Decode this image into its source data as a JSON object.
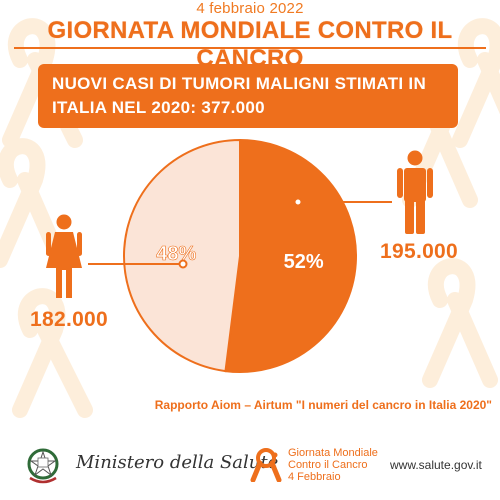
{
  "date": "4 febbraio 2022",
  "headline": "GIORNATA MONDIALE CONTRO IL CANCRO",
  "banner": {
    "line1": "NUOVI CASI DI TUMORI MALIGNI STIMATI IN",
    "line2": "ITALIA NEL 2020:  377.000"
  },
  "colors": {
    "orange": "#ee6f1c",
    "light_peach": "#fbe4d7",
    "ribbon_bg": "#fdeedb"
  },
  "icons": {
    "woman": "woman-icon",
    "man": "man-icon"
  },
  "counts": {
    "women": "182.000",
    "men": "195.000"
  },
  "chart_data": {
    "type": "pie",
    "slices": [
      {
        "label": "48%",
        "value": 48,
        "count": 182000,
        "color": "#fbe4d7",
        "stroke": "#ee6f1c",
        "text_color": "#ffffff"
      },
      {
        "label": "52%",
        "value": 52,
        "count": 195000,
        "color": "#ee6f1c",
        "stroke": "#ee6f1c",
        "text_color": "#ffffff"
      }
    ],
    "total": 377000
  },
  "source": "Rapporto Aiom – Airtum \"I numeri del cancro in Italia 2020\"",
  "footer": {
    "ministry": "Ministero della Salute",
    "gmc_line1": "Giornata Mondiale",
    "gmc_line2": "Contro il Cancro",
    "gmc_line3": "4 Febbraio",
    "website": "www.salute.gov.it"
  }
}
